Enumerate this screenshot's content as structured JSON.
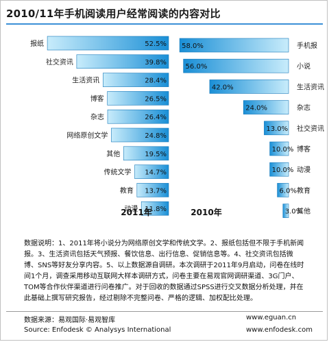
{
  "title": "2010/11年手机阅读用户经常阅读的内容对比",
  "chart_data": [
    {
      "type": "bar",
      "year_label": "2011年",
      "categories": [
        "报纸",
        "社交资讯",
        "生活资讯",
        "博客",
        "杂志",
        "网络原创文学",
        "其他",
        "传统文学",
        "教育",
        "动漫"
      ],
      "values": [
        52.5,
        39.8,
        28.4,
        26.5,
        26.4,
        24.8,
        19.5,
        14.7,
        13.7,
        11.8
      ],
      "value_labels": [
        "52.5%",
        "39.8%",
        "28.4%",
        "26.5%",
        "26.4%",
        "24.8%",
        "19.5%",
        "14.7%",
        "13.7%",
        "11.8%"
      ],
      "orientation": "horizontal",
      "bar_direction": "right-to-left",
      "grid": false
    },
    {
      "type": "bar",
      "year_label": "2010年",
      "categories": [
        "手机报",
        "小说",
        "生活资讯",
        "杂志",
        "社交资讯",
        "博客",
        "动漫",
        "教育",
        "其他"
      ],
      "values": [
        58.0,
        56.0,
        42.0,
        24.0,
        13.0,
        10.0,
        10.0,
        6.0,
        3.0
      ],
      "value_labels": [
        "58.0%",
        "56.0%",
        "42.0%",
        "24.0%",
        "13.0%",
        "10.0%",
        "10.0%",
        "6.0%",
        "3.0%"
      ],
      "orientation": "horizontal",
      "bar_direction": "left-to-right",
      "grid": false
    }
  ],
  "colors": {
    "bar_light": "#c8ecfb",
    "bar_dark": "#1a8fd6",
    "accent": "#3a8fd6"
  },
  "notes": "数据说明：1、2011年将小说分为网络原创文学和传统文学。2、报纸包括但不限于手机新闻报。3、生活资讯包括天气预报、餐饮信息、出行信息、促销信息等。4、社交资讯包括微博、SNS等好友分享内容。5、以上数据源自调研。本次调研于2011年9月启动，问卷在线时间1个月，调查采用移动互联网大样本调研方式，问卷主要在易观官网调研渠道、3G门户、TOM等合作伙伴渠道进行问卷推广。对于回收的数据通过SPSS进行交叉数据分析处理，并在此基础上撰写研究报告，经过剔除不完整问卷、严格的逻辑、加权配比处理。",
  "footer": {
    "source_cn": "数据来源：易观国际·易观智库",
    "source_en": "Source: Enfodesk © Analysys International",
    "url1": "www.eguan.cn",
    "url2": "www.enfodesk.com"
  }
}
